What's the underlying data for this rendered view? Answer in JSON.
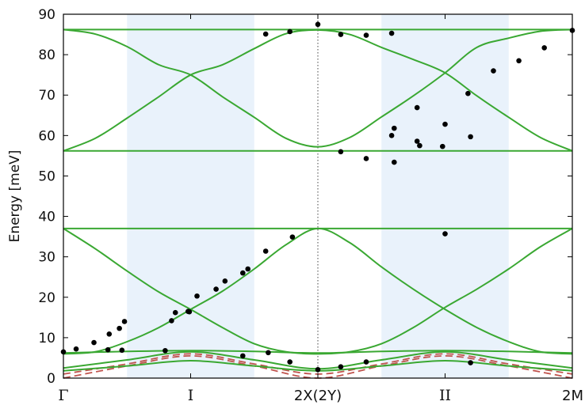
{
  "chart_data": {
    "type": "line",
    "title": "",
    "xlabel": "",
    "ylabel": "Energy [meV]",
    "ylim": [
      0,
      90
    ],
    "yticks": [
      0,
      10,
      20,
      30,
      40,
      50,
      60,
      70,
      80,
      90
    ],
    "xlim": [
      0,
      4
    ],
    "xtick_positions": [
      0,
      1,
      2,
      3,
      4
    ],
    "xtick_labels": [
      "Γ",
      "I",
      "2X(2Y)",
      "II",
      "2M"
    ],
    "shaded_regions": [
      [
        0.5,
        1.5
      ],
      [
        2.5,
        3.5
      ]
    ],
    "vline": 2,
    "colors": {
      "model_solid": "#3aa832",
      "model_dashed": "#c0544e",
      "shade": "#e9f2fb",
      "points": "#000000"
    },
    "series": [
      {
        "style": "solid",
        "x": [
          0,
          0.5,
          1,
          1.5,
          2,
          2.5,
          3,
          3.5,
          4
        ],
        "y": [
          86.2,
          86.2,
          86.2,
          86.2,
          86.2,
          86.2,
          86.2,
          86.2,
          86.2
        ]
      },
      {
        "style": "solid",
        "x": [
          0,
          0.5,
          1,
          1.5,
          2,
          2.5,
          3,
          3.5,
          4
        ],
        "y": [
          56.2,
          56.2,
          56.2,
          56.2,
          56.2,
          56.2,
          56.2,
          56.2,
          56.2
        ]
      },
      {
        "style": "solid",
        "x": [
          0,
          0.25,
          0.5,
          0.75,
          1,
          1.25,
          1.5,
          1.75,
          2,
          2.25,
          2.5,
          2.75,
          3,
          3.25,
          3.5,
          3.75,
          4
        ],
        "y": [
          86.2,
          85.1,
          82.0,
          77.5,
          75.0,
          69.6,
          64.5,
          59.3,
          57.2,
          59.5,
          64.6,
          69.8,
          75.5,
          81.8,
          84.1,
          85.8,
          86.2
        ]
      },
      {
        "style": "solid",
        "x": [
          0,
          0.25,
          0.5,
          0.75,
          1,
          1.25,
          1.5,
          1.75,
          2,
          2.25,
          2.5,
          2.75,
          3,
          3.25,
          3.5,
          3.75,
          4
        ],
        "y": [
          56.2,
          59.3,
          64.3,
          69.6,
          75.0,
          77.5,
          81.5,
          85.2,
          86.1,
          85.0,
          81.8,
          78.8,
          75.5,
          69.8,
          64.5,
          59.5,
          56.2
        ]
      },
      {
        "style": "solid",
        "x": [
          0,
          0.5,
          1,
          1.5,
          2,
          2.5,
          3,
          3.5,
          4
        ],
        "y": [
          37.0,
          37.0,
          37.0,
          37.0,
          37.0,
          37.0,
          37.0,
          37.0,
          37.0
        ]
      },
      {
        "style": "solid",
        "x": [
          0,
          0.25,
          0.5,
          0.75,
          1,
          1.25,
          1.5,
          1.75,
          2,
          2.25,
          2.5,
          2.75,
          3,
          3.25,
          3.5,
          3.75,
          4
        ],
        "y": [
          37.0,
          32.0,
          26.5,
          21.3,
          17.0,
          12.5,
          8.5,
          6.5,
          6.0,
          6.5,
          8.5,
          12.5,
          17.5,
          22.0,
          27.0,
          32.5,
          37.0
        ]
      },
      {
        "style": "solid",
        "x": [
          0,
          0.25,
          0.5,
          0.75,
          1,
          1.25,
          1.5,
          1.75,
          2,
          2.25,
          2.5,
          2.75,
          3,
          3.25,
          3.5,
          3.75,
          4
        ],
        "y": [
          6.0,
          6.5,
          9.0,
          12.5,
          17.0,
          21.5,
          27.0,
          33.0,
          37.0,
          33.5,
          27.5,
          22.0,
          17.0,
          12.5,
          9.0,
          6.5,
          6.0
        ]
      },
      {
        "style": "solid",
        "x": [
          0,
          0.5,
          1,
          1.5,
          2,
          2.5,
          3,
          3.5,
          4
        ],
        "y": [
          6.2,
          6.6,
          6.8,
          6.6,
          6.2,
          6.6,
          6.8,
          6.6,
          6.2
        ]
      },
      {
        "style": "solid",
        "x": [
          0,
          0.5,
          1,
          1.5,
          2,
          2.5,
          3,
          3.5,
          4
        ],
        "y": [
          2.5,
          4.5,
          6.5,
          4.5,
          2.3,
          4.5,
          6.5,
          4.5,
          2.5
        ]
      },
      {
        "style": "solid",
        "x": [
          0,
          0.5,
          1,
          1.5,
          2,
          2.5,
          3,
          3.5,
          4
        ],
        "y": [
          1.8,
          3.0,
          4.3,
          3.0,
          1.8,
          3.0,
          4.3,
          3.0,
          1.8
        ]
      },
      {
        "style": "dashed",
        "x": [
          0,
          0.5,
          1,
          1.5,
          2,
          2.5,
          3,
          3.5,
          4
        ],
        "y": [
          0.0,
          3.0,
          5.5,
          3.0,
          0.0,
          3.0,
          5.5,
          3.0,
          0.0
        ]
      },
      {
        "style": "dashed",
        "x": [
          0,
          0.5,
          1,
          1.5,
          2,
          2.5,
          3,
          3.5,
          4
        ],
        "y": [
          1.0,
          3.5,
          6.0,
          3.5,
          1.0,
          3.5,
          6.0,
          3.5,
          1.0
        ]
      }
    ],
    "points": {
      "x": [
        0.0,
        0.1,
        0.24,
        0.35,
        0.36,
        0.46,
        0.8,
        0.44,
        0.48,
        0.85,
        0.88,
        0.98,
        1.05,
        0.99,
        1.2,
        1.27,
        1.41,
        1.45,
        1.59,
        1.8,
        1.61,
        1.41,
        1.78,
        2.0,
        2.18,
        2.38,
        2.58,
        2.6,
        2.78,
        2.98,
        3.2,
        3.0,
        2.78,
        3.18,
        3.38,
        3.58,
        3.78,
        4.0,
        2.58,
        2.38,
        2.18,
        2.0,
        1.78,
        1.59,
        2.18,
        2.38,
        2.6,
        2.8,
        3.0,
        3.2
      ],
      "y": [
        6.5,
        7.2,
        8.8,
        7.0,
        10.9,
        6.9,
        6.8,
        12.3,
        14.0,
        14.2,
        16.2,
        16.5,
        20.3,
        16.4,
        22.0,
        24.0,
        26.0,
        27.0,
        31.4,
        34.9,
        6.3,
        5.5,
        4.0,
        2.1,
        2.8,
        4.0,
        60.0,
        61.8,
        58.6,
        57.3,
        59.7,
        62.8,
        66.9,
        70.4,
        76.0,
        78.5,
        81.7,
        86.0,
        85.3,
        84.8,
        85.0,
        87.5,
        85.7,
        85.1,
        56.0,
        54.3,
        53.4,
        57.5,
        35.7,
        3.8
      ]
    }
  }
}
